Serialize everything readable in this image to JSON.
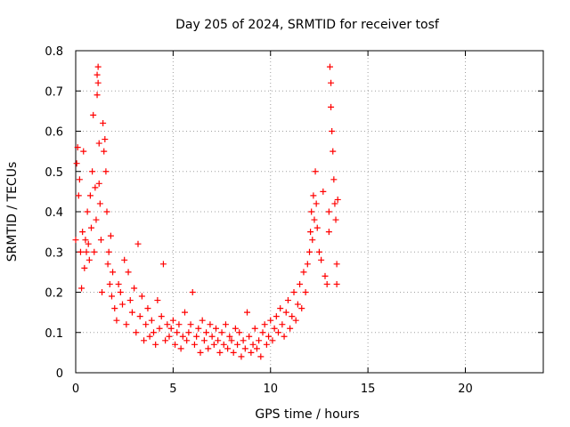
{
  "chart_data": {
    "type": "scatter",
    "title": "Day 205 of 2024, SRMTID for receiver tosf",
    "xlabel": "GPS time / hours",
    "ylabel": "SRMTID / TECUs",
    "xlim": [
      0,
      24
    ],
    "ylim": [
      0,
      0.8
    ],
    "xticks": [
      0,
      5,
      10,
      15,
      20
    ],
    "yticks": [
      0,
      0.1,
      0.2,
      0.3,
      0.4,
      0.5,
      0.6,
      0.7,
      0.8
    ],
    "xtick_labels": [
      "0",
      "5",
      "10",
      "15",
      "20"
    ],
    "ytick_labels": [
      "0",
      "0.1",
      "0.2",
      "0.3",
      "0.4",
      "0.5",
      "0.6",
      "0.7",
      "0.8"
    ],
    "grid": true,
    "marker": "+",
    "series": [
      {
        "name": "SRMTID",
        "color": "#ff0000",
        "x": [
          0.0,
          0.05,
          0.1,
          0.15,
          0.2,
          0.25,
          0.3,
          0.35,
          0.4,
          0.45,
          0.5,
          0.55,
          0.6,
          0.65,
          0.7,
          0.75,
          0.8,
          0.85,
          0.9,
          0.95,
          1.0,
          1.05,
          1.1,
          1.1,
          1.15,
          1.15,
          1.2,
          1.2,
          1.25,
          1.3,
          1.35,
          1.4,
          1.45,
          1.5,
          1.55,
          1.6,
          1.65,
          1.7,
          1.75,
          1.8,
          1.85,
          1.9,
          2.0,
          2.1,
          2.2,
          2.3,
          2.4,
          2.5,
          2.6,
          2.7,
          2.8,
          2.9,
          3.0,
          3.1,
          3.2,
          3.3,
          3.4,
          3.5,
          3.6,
          3.7,
          3.8,
          3.9,
          4.0,
          4.1,
          4.2,
          4.3,
          4.4,
          4.5,
          4.6,
          4.7,
          4.8,
          4.9,
          5.0,
          5.1,
          5.2,
          5.3,
          5.4,
          5.5,
          5.6,
          5.7,
          5.8,
          5.9,
          6.0,
          6.1,
          6.2,
          6.3,
          6.4,
          6.5,
          6.6,
          6.7,
          6.8,
          6.9,
          7.0,
          7.1,
          7.2,
          7.3,
          7.4,
          7.5,
          7.6,
          7.7,
          7.8,
          7.9,
          8.0,
          8.1,
          8.2,
          8.3,
          8.4,
          8.5,
          8.6,
          8.7,
          8.8,
          8.9,
          9.0,
          9.1,
          9.2,
          9.3,
          9.4,
          9.5,
          9.6,
          9.7,
          9.8,
          9.9,
          10.0,
          10.1,
          10.2,
          10.3,
          10.4,
          10.5,
          10.6,
          10.7,
          10.8,
          10.9,
          11.0,
          11.1,
          11.2,
          11.3,
          11.4,
          11.5,
          11.6,
          11.7,
          11.8,
          11.9,
          12.0,
          12.05,
          12.1,
          12.15,
          12.2,
          12.25,
          12.3,
          12.35,
          12.4,
          12.5,
          12.6,
          12.7,
          12.8,
          12.9,
          13.0,
          13.0,
          13.05,
          13.1,
          13.1,
          13.15,
          13.2,
          13.25,
          13.3,
          13.35,
          13.4,
          13.4,
          13.45
        ],
        "y": [
          0.33,
          0.52,
          0.56,
          0.44,
          0.48,
          0.3,
          0.21,
          0.35,
          0.55,
          0.26,
          0.33,
          0.3,
          0.4,
          0.32,
          0.28,
          0.44,
          0.36,
          0.5,
          0.64,
          0.3,
          0.46,
          0.38,
          0.74,
          0.69,
          0.76,
          0.72,
          0.57,
          0.47,
          0.42,
          0.33,
          0.2,
          0.62,
          0.55,
          0.58,
          0.5,
          0.4,
          0.27,
          0.3,
          0.22,
          0.34,
          0.19,
          0.25,
          0.16,
          0.13,
          0.22,
          0.2,
          0.17,
          0.28,
          0.12,
          0.25,
          0.18,
          0.15,
          0.21,
          0.1,
          0.32,
          0.14,
          0.19,
          0.08,
          0.12,
          0.16,
          0.09,
          0.13,
          0.1,
          0.07,
          0.18,
          0.11,
          0.14,
          0.27,
          0.08,
          0.12,
          0.09,
          0.11,
          0.13,
          0.07,
          0.1,
          0.12,
          0.06,
          0.09,
          0.15,
          0.08,
          0.1,
          0.12,
          0.2,
          0.07,
          0.09,
          0.11,
          0.05,
          0.13,
          0.08,
          0.1,
          0.06,
          0.12,
          0.09,
          0.07,
          0.11,
          0.08,
          0.05,
          0.1,
          0.07,
          0.12,
          0.06,
          0.09,
          0.08,
          0.05,
          0.11,
          0.07,
          0.1,
          0.04,
          0.08,
          0.06,
          0.15,
          0.09,
          0.05,
          0.07,
          0.11,
          0.06,
          0.08,
          0.04,
          0.1,
          0.12,
          0.07,
          0.09,
          0.13,
          0.08,
          0.11,
          0.14,
          0.1,
          0.16,
          0.12,
          0.09,
          0.15,
          0.18,
          0.11,
          0.14,
          0.2,
          0.13,
          0.17,
          0.22,
          0.16,
          0.25,
          0.2,
          0.27,
          0.3,
          0.35,
          0.4,
          0.33,
          0.44,
          0.38,
          0.5,
          0.42,
          0.36,
          0.3,
          0.28,
          0.45,
          0.24,
          0.22,
          0.35,
          0.4,
          0.76,
          0.72,
          0.66,
          0.6,
          0.55,
          0.48,
          0.42,
          0.38,
          0.27,
          0.22,
          0.43
        ]
      }
    ]
  }
}
